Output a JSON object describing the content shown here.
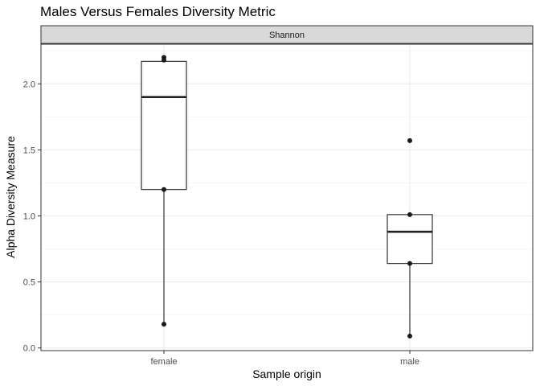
{
  "chart_data": {
    "type": "box",
    "title": "Males Versus Females Diversity Metric",
    "facet_label": "Shannon",
    "xlabel": "Sample origin",
    "ylabel": "Alpha Diversity Measure",
    "categories": [
      "female",
      "male"
    ],
    "ylim": [
      -0.02,
      2.3
    ],
    "y_ticks": [
      0.0,
      0.5,
      1.0,
      1.5,
      2.0
    ],
    "y_tick_labels": [
      "0.0",
      "0.5",
      "1.0",
      "1.5",
      "2.0"
    ],
    "grid": true,
    "boxes": [
      {
        "category": "female",
        "whisker_low": 0.18,
        "q1": 1.2,
        "median": 1.9,
        "q3": 2.17,
        "whisker_high": 2.2
      },
      {
        "category": "male",
        "whisker_low": 0.09,
        "q1": 0.64,
        "median": 0.88,
        "q3": 1.01,
        "whisker_high": 1.01
      }
    ],
    "points": [
      {
        "category": "female",
        "y": 2.2
      },
      {
        "category": "female",
        "y": 2.18
      },
      {
        "category": "female",
        "y": 1.2
      },
      {
        "category": "female",
        "y": 0.18
      },
      {
        "category": "male",
        "y": 1.57
      },
      {
        "category": "male",
        "y": 1.01
      },
      {
        "category": "male",
        "y": 0.64
      },
      {
        "category": "male",
        "y": 0.09
      }
    ]
  }
}
